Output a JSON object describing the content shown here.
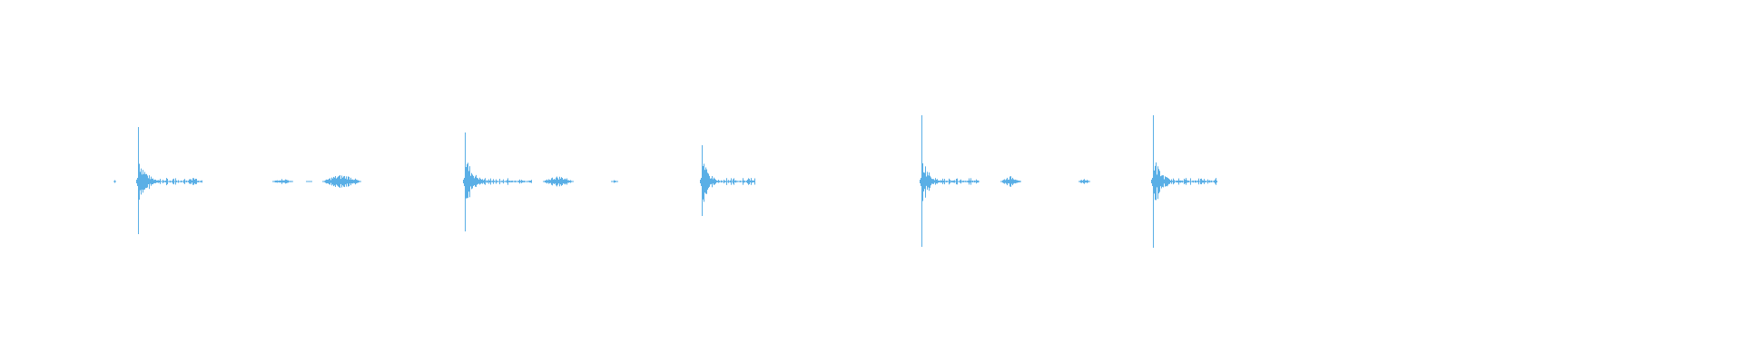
{
  "waveform": {
    "color": "#5aafe6",
    "background": "#ffffff"
  }
}
